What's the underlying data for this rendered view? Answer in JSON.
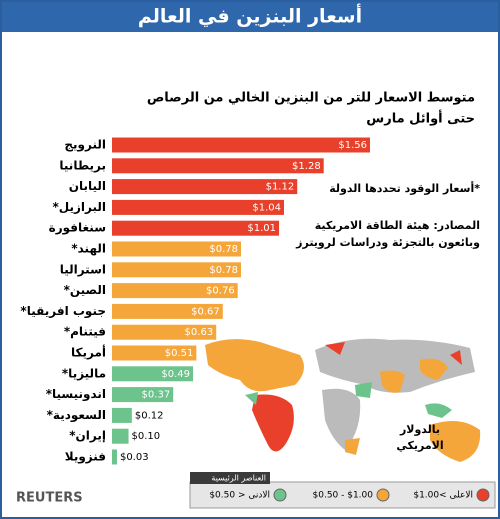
{
  "chart_data": {
    "type": "bar",
    "orientation": "horizontal",
    "title": "أسعار البنزين في العالم",
    "subtitle": [
      "متوسط الاسعار للتر من البنزين الخالي من الرصاص",
      "حتى أوائل مارس"
    ],
    "categories": [
      "النرويج",
      "بريطانيا",
      "اليابان",
      "البرازيل*",
      "سنغافورة",
      "الهند*",
      "استراليا",
      "الصين*",
      "جنوب افريقيا*",
      "فيتنام*",
      "أمريكا",
      "ماليزيا*",
      "اندونيسيا*",
      "السعودية*",
      "إيران*",
      "فنزويلا"
    ],
    "values": [
      1.56,
      1.28,
      1.12,
      1.04,
      1.01,
      0.78,
      0.78,
      0.76,
      0.67,
      0.63,
      0.51,
      0.49,
      0.37,
      0.12,
      0.1,
      0.03
    ],
    "value_labels": [
      "$1.56",
      "$1.28",
      "$1.12",
      "$1.04",
      "$1.01",
      "$0.78",
      "$0.78",
      "$0.76",
      "$0.67",
      "$0.63",
      "$0.51",
      "$0.49",
      "$0.37",
      "$0.12",
      "$0.10",
      "$0.03"
    ],
    "colors": [
      "#e8402a",
      "#e8402a",
      "#e8402a",
      "#e8402a",
      "#e8402a",
      "#f5a63a",
      "#f5a63a",
      "#f5a63a",
      "#f5a63a",
      "#f5a63a",
      "#f5a63a",
      "#6cc38c",
      "#6cc38c",
      "#6cc38c",
      "#6cc38c",
      "#6cc38c"
    ],
    "notes": [
      "*أسعار الوقود تحددها الدولة"
    ],
    "sources": [
      "المصادر: هيئة الطاقة الامريكية",
      "وبائعون بالتجزئة ودراسات لرويترز"
    ],
    "unit_note": [
      "بالدولار",
      "الامريكي"
    ],
    "legend": {
      "title": "العناصر الرئيسية",
      "items": [
        {
          "label": "$1.00< الاعلى",
          "color": "#e8402a"
        },
        {
          "label": "$0.50 - $1.00",
          "color": "#f5a63a"
        },
        {
          "label": "$0.50 > الادنى",
          "color": "#6cc38c"
        }
      ]
    },
    "brand": "REUTERS"
  }
}
